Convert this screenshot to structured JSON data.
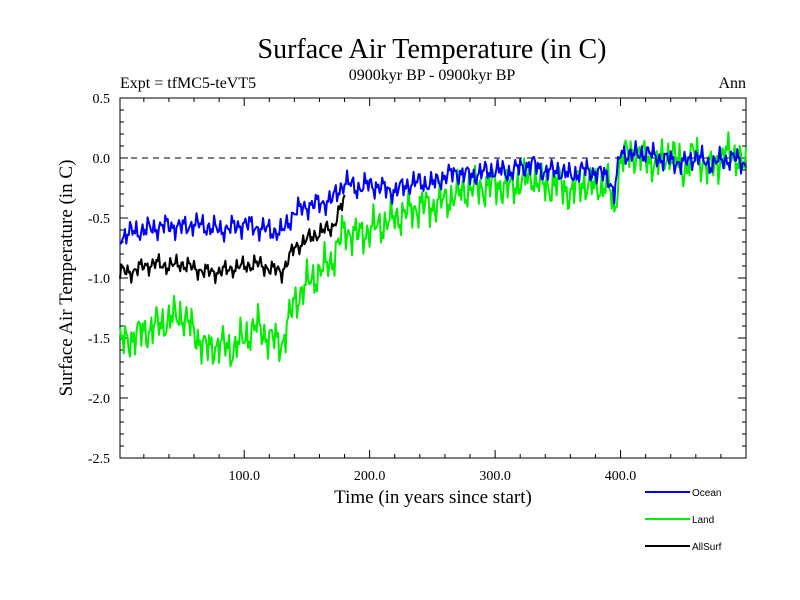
{
  "chart_data": {
    "type": "line",
    "title": "Surface Air Temperature (in C)",
    "subtitle": "0900kyr BP - 0900kyr BP",
    "left_label": "Expt = tfMC5-teVT5",
    "right_label": "Ann",
    "xlabel": "Time (in years since start)",
    "ylabel": "Surface Air Temperature (in C)",
    "xlim": [
      1,
      500
    ],
    "ylim": [
      -2.5,
      0.5
    ],
    "xticks": [
      100,
      200,
      300,
      400
    ],
    "xtick_labels": [
      "100.0",
      "200.0",
      "300.0",
      "400.0"
    ],
    "yticks": [
      0.5,
      0.0,
      -0.5,
      -1.0,
      -1.5,
      -2.0,
      -2.5
    ],
    "ytick_labels": [
      "0.5",
      "0.0",
      "-0.5",
      "-1.0",
      "-1.5",
      "-2.0",
      "-2.5"
    ],
    "reference_line": 0.0,
    "legend_position": "bottom-right",
    "series": [
      {
        "name": "Ocean",
        "color": "#0000ff",
        "x": [
          1,
          10,
          20,
          30,
          40,
          50,
          60,
          70,
          80,
          90,
          100,
          110,
          120,
          130,
          140,
          150,
          160,
          170,
          180,
          190,
          200,
          210,
          220,
          230,
          240,
          250,
          260,
          270,
          280,
          290,
          300,
          310,
          320,
          330,
          340,
          350,
          360,
          370,
          380,
          390,
          395,
          400,
          410,
          420,
          430,
          440,
          450,
          460,
          470,
          480,
          490,
          500
        ],
        "values": [
          -0.65,
          -0.62,
          -0.6,
          -0.58,
          -0.56,
          -0.58,
          -0.55,
          -0.57,
          -0.6,
          -0.58,
          -0.55,
          -0.58,
          -0.6,
          -0.62,
          -0.45,
          -0.4,
          -0.38,
          -0.35,
          -0.2,
          -0.25,
          -0.22,
          -0.25,
          -0.28,
          -0.22,
          -0.2,
          -0.22,
          -0.15,
          -0.12,
          -0.15,
          -0.12,
          -0.1,
          -0.12,
          -0.08,
          -0.05,
          -0.12,
          -0.1,
          -0.15,
          -0.1,
          -0.12,
          -0.15,
          -0.3,
          0.05,
          0.02,
          0.05,
          0.0,
          -0.02,
          -0.05,
          0.02,
          -0.05,
          -0.02,
          0.0,
          -0.05
        ]
      },
      {
        "name": "Land",
        "color": "#00ee00",
        "x": [
          1,
          10,
          20,
          30,
          40,
          50,
          60,
          70,
          80,
          90,
          100,
          110,
          120,
          130,
          140,
          150,
          160,
          170,
          180,
          190,
          200,
          210,
          220,
          230,
          240,
          250,
          260,
          270,
          280,
          290,
          300,
          310,
          320,
          330,
          340,
          350,
          360,
          370,
          380,
          390,
          395,
          400,
          410,
          420,
          430,
          440,
          450,
          460,
          470,
          480,
          490,
          500
        ],
        "values": [
          -1.55,
          -1.5,
          -1.45,
          -1.4,
          -1.35,
          -1.3,
          -1.45,
          -1.6,
          -1.55,
          -1.6,
          -1.5,
          -1.4,
          -1.5,
          -1.55,
          -1.2,
          -1.05,
          -0.95,
          -0.85,
          -0.6,
          -0.65,
          -0.6,
          -0.55,
          -0.5,
          -0.45,
          -0.4,
          -0.4,
          -0.35,
          -0.3,
          -0.25,
          -0.25,
          -0.22,
          -0.25,
          -0.2,
          -0.15,
          -0.25,
          -0.2,
          -0.3,
          -0.2,
          -0.25,
          -0.2,
          -0.45,
          0.0,
          0.05,
          0.0,
          -0.05,
          0.05,
          -0.1,
          0.05,
          -0.1,
          0.0,
          0.05,
          -0.1
        ]
      },
      {
        "name": "AllSurf",
        "color": "#000000",
        "x": [
          1,
          10,
          20,
          30,
          40,
          50,
          60,
          70,
          80,
          90,
          100,
          110,
          120,
          130,
          140,
          150,
          160,
          170,
          180
        ],
        "values": [
          -0.95,
          -0.95,
          -0.9,
          -0.88,
          -0.9,
          -0.88,
          -0.92,
          -0.95,
          -0.95,
          -0.92,
          -0.9,
          -0.88,
          -0.92,
          -0.95,
          -0.75,
          -0.68,
          -0.62,
          -0.58,
          -0.35
        ]
      }
    ]
  }
}
